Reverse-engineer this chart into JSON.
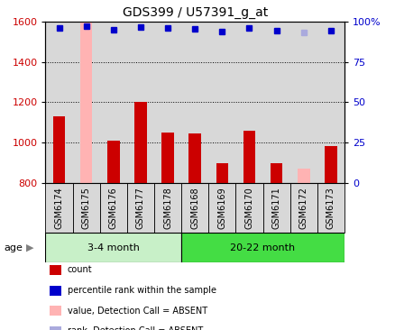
{
  "title": "GDS399 / U57391_g_at",
  "samples": [
    "GSM6174",
    "GSM6175",
    "GSM6176",
    "GSM6177",
    "GSM6178",
    "GSM6168",
    "GSM6169",
    "GSM6170",
    "GSM6171",
    "GSM6172",
    "GSM6173"
  ],
  "counts": [
    1130,
    1600,
    1010,
    1200,
    1050,
    1045,
    900,
    1060,
    900,
    870,
    985
  ],
  "ranks": [
    96,
    97,
    95,
    96.5,
    96,
    95.5,
    94,
    96,
    94.5,
    93,
    94.5
  ],
  "absent_bar": [
    false,
    true,
    false,
    false,
    false,
    false,
    false,
    false,
    false,
    true,
    false
  ],
  "absent_rank": [
    false,
    false,
    false,
    false,
    false,
    false,
    false,
    false,
    false,
    true,
    false
  ],
  "ylim_left": [
    800,
    1600
  ],
  "ylim_right": [
    0,
    100
  ],
  "yticks_left": [
    800,
    1000,
    1200,
    1400,
    1600
  ],
  "yticks_right": [
    0,
    25,
    50,
    75,
    100
  ],
  "ytick_labels_right": [
    "0",
    "25",
    "50",
    "75",
    "100%"
  ],
  "bar_color": "#cc0000",
  "absent_bar_color": "#ffb3b3",
  "dot_color": "#0000cc",
  "absent_dot_color": "#aaaadd",
  "group1_label": "3-4 month",
  "group2_label": "20-22 month",
  "group1_count": 5,
  "group2_count": 6,
  "age_label": "age",
  "legend_items": [
    {
      "label": "count",
      "color": "#cc0000"
    },
    {
      "label": "percentile rank within the sample",
      "color": "#0000cc"
    },
    {
      "label": "value, Detection Call = ABSENT",
      "color": "#ffb3b3"
    },
    {
      "label": "rank, Detection Call = ABSENT",
      "color": "#aaaadd"
    }
  ],
  "sample_bg_color": "#d8d8d8",
  "group1_bg_color": "#c8f0c8",
  "group2_bg_color": "#44dd44",
  "bar_width": 0.45
}
